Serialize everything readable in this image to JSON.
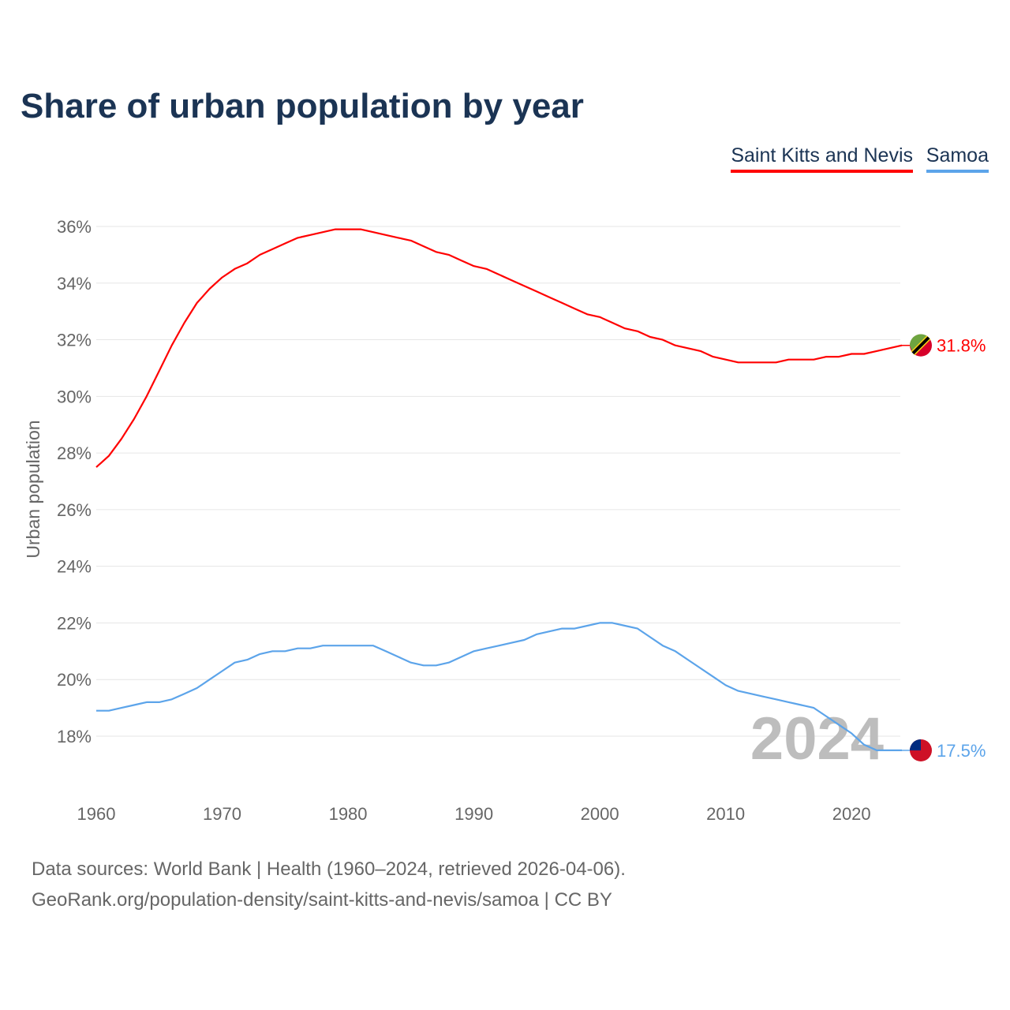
{
  "chart_data": {
    "type": "line",
    "title": "Share of urban population by year",
    "ylabel": "Urban population",
    "xlabel": "",
    "ylim": [
      16.5,
      36.5
    ],
    "xlim": [
      1960,
      2024
    ],
    "yticks": [
      "18%",
      "20%",
      "22%",
      "24%",
      "26%",
      "28%",
      "30%",
      "32%",
      "34%",
      "36%"
    ],
    "ytick_values": [
      18,
      20,
      22,
      24,
      26,
      28,
      30,
      32,
      34,
      36
    ],
    "xticks": [
      "1960",
      "1970",
      "1980",
      "1990",
      "2000",
      "2010",
      "2020"
    ],
    "xtick_values": [
      1960,
      1970,
      1980,
      1990,
      2000,
      2010,
      2020
    ],
    "grid": true,
    "legend_position": "top-right",
    "year_watermark": "2024",
    "x": [
      1960,
      1961,
      1962,
      1963,
      1964,
      1965,
      1966,
      1967,
      1968,
      1969,
      1970,
      1971,
      1972,
      1973,
      1974,
      1975,
      1976,
      1977,
      1978,
      1979,
      1980,
      1981,
      1982,
      1983,
      1984,
      1985,
      1986,
      1987,
      1988,
      1989,
      1990,
      1991,
      1992,
      1993,
      1994,
      1995,
      1996,
      1997,
      1998,
      1999,
      2000,
      2001,
      2002,
      2003,
      2004,
      2005,
      2006,
      2007,
      2008,
      2009,
      2010,
      2011,
      2012,
      2013,
      2014,
      2015,
      2016,
      2017,
      2018,
      2019,
      2020,
      2021,
      2022,
      2023,
      2024
    ],
    "series": [
      {
        "name": "Saint Kitts and Nevis",
        "color": "#ff0000",
        "end_label": "31.8%",
        "values": [
          27.5,
          27.9,
          28.5,
          29.2,
          30.0,
          30.9,
          31.8,
          32.6,
          33.3,
          33.8,
          34.2,
          34.5,
          34.7,
          35.0,
          35.2,
          35.4,
          35.6,
          35.7,
          35.8,
          35.9,
          35.9,
          35.9,
          35.8,
          35.7,
          35.6,
          35.5,
          35.3,
          35.1,
          35.0,
          34.8,
          34.6,
          34.5,
          34.3,
          34.1,
          33.9,
          33.7,
          33.5,
          33.3,
          33.1,
          32.9,
          32.8,
          32.6,
          32.4,
          32.3,
          32.1,
          32.0,
          31.8,
          31.7,
          31.6,
          31.4,
          31.3,
          31.2,
          31.2,
          31.2,
          31.2,
          31.3,
          31.3,
          31.3,
          31.4,
          31.4,
          31.5,
          31.5,
          31.6,
          31.7,
          31.8
        ]
      },
      {
        "name": "Samoa",
        "color": "#5ca4ea",
        "end_label": "17.5%",
        "values": [
          18.9,
          18.9,
          19.0,
          19.1,
          19.2,
          19.2,
          19.3,
          19.5,
          19.7,
          20.0,
          20.3,
          20.6,
          20.7,
          20.9,
          21.0,
          21.0,
          21.1,
          21.1,
          21.2,
          21.2,
          21.2,
          21.2,
          21.2,
          21.0,
          20.8,
          20.6,
          20.5,
          20.5,
          20.6,
          20.8,
          21.0,
          21.1,
          21.2,
          21.3,
          21.4,
          21.6,
          21.7,
          21.8,
          21.8,
          21.9,
          22.0,
          22.0,
          21.9,
          21.8,
          21.5,
          21.2,
          21.0,
          20.7,
          20.4,
          20.1,
          19.8,
          19.6,
          19.5,
          19.4,
          19.3,
          19.2,
          19.1,
          19.0,
          18.7,
          18.4,
          18.1,
          17.7,
          17.5,
          17.5,
          17.5
        ]
      }
    ]
  },
  "footer": {
    "sources": "Data sources: World Bank | Health (1960–2024, retrieved 2026-04-06).",
    "link": "GeoRank.org/population-density/saint-kitts-and-nevis/samoa | CC BY"
  }
}
